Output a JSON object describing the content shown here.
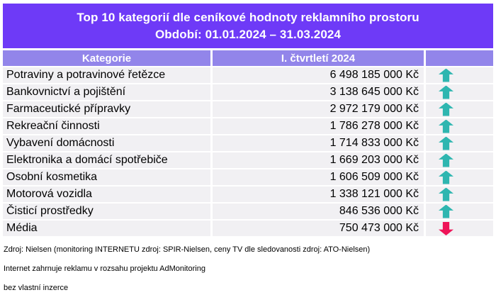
{
  "banner": {
    "title_line1": "Top 10 kategorií dle ceníkové hodnoty reklamního prostoru",
    "title_line2": "Období: 01.01.2024 – 31.03.2024"
  },
  "table": {
    "headers": {
      "category": "Kategorie",
      "period": "I. čtvrtletí 2024",
      "trend": ""
    },
    "rows": [
      {
        "category": "Potraviny a potravinové řetězce",
        "value": "6 498 185 000 Kč",
        "trend": "up"
      },
      {
        "category": "Bankovnictví a pojištění",
        "value": "3 138 645 000 Kč",
        "trend": "up"
      },
      {
        "category": "Farmaceutické přípravky",
        "value": "2 972 179 000 Kč",
        "trend": "up"
      },
      {
        "category": "Rekreační činnosti",
        "value": "1 786 278 000 Kč",
        "trend": "up"
      },
      {
        "category": "Vybavení domácnosti",
        "value": "1 714 833 000 Kč",
        "trend": "up"
      },
      {
        "category": "Elektronika a domácí spotřebiče",
        "value": "1 669 203 000 Kč",
        "trend": "up"
      },
      {
        "category": "Osobní kosmetika",
        "value": "1 606 509 000 Kč",
        "trend": "up"
      },
      {
        "category": "Motorová vozidla",
        "value": "1 338 121 000 Kč",
        "trend": "up"
      },
      {
        "category": "Čisticí prostředky",
        "value": "846 536 000 Kč",
        "trend": "up"
      },
      {
        "category": "Média",
        "value": "750 473 000 Kč",
        "trend": "down"
      }
    ]
  },
  "footer": {
    "line1": "Zdroj: Nielsen (monitoring INTERNETU zdroj: SPIR-Nielsen, ceny TV dle sledovanosti zdroj: ATO-Nielsen)",
    "line2": "Internet zahrnuje reklamu v rozsahu projektu AdMonitoring",
    "line3": "bez vlastní inzerce"
  },
  "colors": {
    "banner_background": "#6E3AF7",
    "header_background": "#9285EA",
    "row_background": "#F1F0F3",
    "up_arrow": "#2EB6B0",
    "down_arrow": "#EE1458",
    "banner_text": "#FFFFFF",
    "row_text": "#000000"
  },
  "chart_data": {
    "type": "table",
    "title": "Top 10 kategorií dle ceníkové hodnoty reklamního prostoru",
    "subtitle": "Období: 01.01.2024 – 31.03.2024",
    "columns": [
      "Kategorie",
      "I. čtvrtletí 2024",
      "trend"
    ],
    "unit": "Kč",
    "rows": [
      [
        "Potraviny a potravinové řetězce",
        6498185000,
        "up"
      ],
      [
        "Bankovnictví a pojištění",
        3138645000,
        "up"
      ],
      [
        "Farmaceutické přípravky",
        2972179000,
        "up"
      ],
      [
        "Rekreační činnosti",
        1786278000,
        "up"
      ],
      [
        "Vybavení domácnosti",
        1714833000,
        "up"
      ],
      [
        "Elektronika a domácí spotřebiče",
        1669203000,
        "up"
      ],
      [
        "Osobní kosmetika",
        1606509000,
        "up"
      ],
      [
        "Motorová vozidla",
        1338121000,
        "up"
      ],
      [
        "Čisticí prostředky",
        846536000,
        "up"
      ],
      [
        "Média",
        750473000,
        "down"
      ]
    ]
  }
}
